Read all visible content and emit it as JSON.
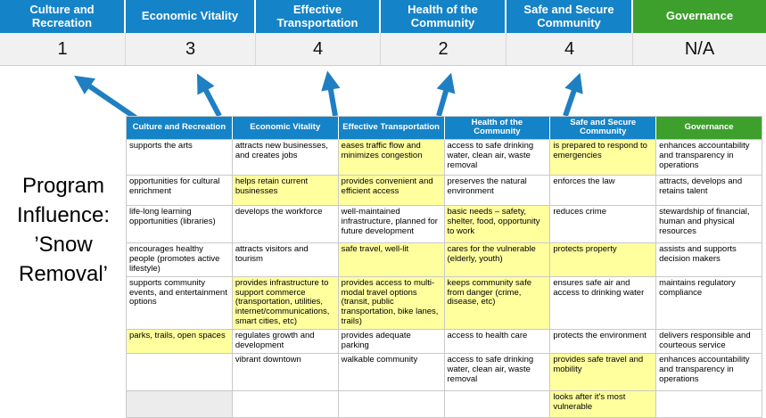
{
  "program": {
    "label": "Program Influence: ’Snow Removal’"
  },
  "colors": {
    "category_blue": "#1583c7",
    "governance_green": "#3da02c",
    "highlight_yellow": "#ffff9e",
    "score_row_bg": "#f1f1f1",
    "grid_border": "#c9c9c9",
    "arrow_blue": "#1f7fc3"
  },
  "scoreboard": {
    "columns": [
      {
        "label": "Culture and Recreation",
        "score": "1",
        "theme": "blue"
      },
      {
        "label": "Economic Vitality",
        "score": "3",
        "theme": "blue"
      },
      {
        "label": "Effective Transportation",
        "score": "4",
        "theme": "blue"
      },
      {
        "label": "Health of the Community",
        "score": "2",
        "theme": "blue"
      },
      {
        "label": "Safe and Secure Community",
        "score": "4",
        "theme": "blue"
      },
      {
        "label": "Governance",
        "score": "N/A",
        "theme": "green"
      }
    ]
  },
  "matrix": {
    "headers": [
      {
        "label": "Culture and Recreation",
        "theme": "blue"
      },
      {
        "label": "Economic Vitality",
        "theme": "blue"
      },
      {
        "label": "Effective Transportation",
        "theme": "blue"
      },
      {
        "label": "Health of the Community",
        "theme": "blue"
      },
      {
        "label": "Safe and Secure Community",
        "theme": "blue"
      },
      {
        "label": "Governance",
        "theme": "green"
      }
    ],
    "rows": [
      [
        {
          "text": "supports the arts",
          "highlight": false
        },
        {
          "text": "attracts new businesses, and creates jobs",
          "highlight": false
        },
        {
          "text": "eases traffic flow and minimizes congestion",
          "highlight": true
        },
        {
          "text": "access to safe drinking water, clean air, waste removal",
          "highlight": false
        },
        {
          "text": "is prepared to respond to emergencies",
          "highlight": true
        },
        {
          "text": "enhances accountability and transparency in operations",
          "highlight": false
        }
      ],
      [
        {
          "text": "opportunities for cultural enrichment",
          "highlight": false
        },
        {
          "text": "helps retain current businesses",
          "highlight": true
        },
        {
          "text": "provides convenient and efficient access",
          "highlight": true
        },
        {
          "text": "preserves the natural environment",
          "highlight": false
        },
        {
          "text": "enforces the law",
          "highlight": false
        },
        {
          "text": "attracts, develops and retains talent",
          "highlight": false
        }
      ],
      [
        {
          "text": "life-long learning opportunities (libraries)",
          "highlight": false
        },
        {
          "text": "develops the workforce",
          "highlight": false
        },
        {
          "text": "well-maintained infrastructure, planned for future development",
          "highlight": false
        },
        {
          "text": "basic needs – safety, shelter, food, opportunity to work",
          "highlight": true
        },
        {
          "text": "reduces crime",
          "highlight": false
        },
        {
          "text": "stewardship of financial, human and physical resources",
          "highlight": false
        }
      ],
      [
        {
          "text": "encourages healthy people (promotes active lifestyle)",
          "highlight": false
        },
        {
          "text": "attracts visitors and tourism",
          "highlight": false
        },
        {
          "text": "safe travel, well-lit",
          "highlight": true
        },
        {
          "text": "cares for the vulnerable (elderly, youth)",
          "highlight": true
        },
        {
          "text": "protects property",
          "highlight": true
        },
        {
          "text": "assists and supports decision makers",
          "highlight": false
        }
      ],
      [
        {
          "text": "supports community events, and entertainment options",
          "highlight": false
        },
        {
          "text": "provides infrastructure to support commerce (transportation, utilities, internet/communications, smart cities, etc)",
          "highlight": true
        },
        {
          "text": "provides access to multi-modal travel options (transit, public transportation, bike lanes, trails)",
          "highlight": true
        },
        {
          "text": "keeps community safe from danger (crime, disease, etc)",
          "highlight": true
        },
        {
          "text": "ensures safe air and access to drinking water",
          "highlight": false
        },
        {
          "text": "maintains regulatory compliance",
          "highlight": false
        }
      ],
      [
        {
          "text": "parks, trails, open spaces",
          "highlight": true
        },
        {
          "text": "regulates growth and development",
          "highlight": false
        },
        {
          "text": "provides adequate parking",
          "highlight": false
        },
        {
          "text": "access to health care",
          "highlight": false
        },
        {
          "text": "protects the environment",
          "highlight": false
        },
        {
          "text": "delivers responsible and courteous service",
          "highlight": false
        }
      ],
      [
        {
          "text": "",
          "highlight": false
        },
        {
          "text": "vibrant downtown",
          "highlight": false
        },
        {
          "text": "walkable community",
          "highlight": false
        },
        {
          "text": "access to safe drinking water, clean air, waste removal",
          "highlight": false
        },
        {
          "text": "provides safe travel and mobility",
          "highlight": true
        },
        {
          "text": "enhances accountability and transparency in operations",
          "highlight": false
        }
      ],
      [
        {
          "text": "",
          "highlight": false,
          "shade": true
        },
        {
          "text": "",
          "highlight": false
        },
        {
          "text": "",
          "highlight": false
        },
        {
          "text": "",
          "highlight": false
        },
        {
          "text": "looks after it's most vulnerable",
          "highlight": true
        },
        {
          "text": "",
          "highlight": false
        }
      ]
    ]
  }
}
